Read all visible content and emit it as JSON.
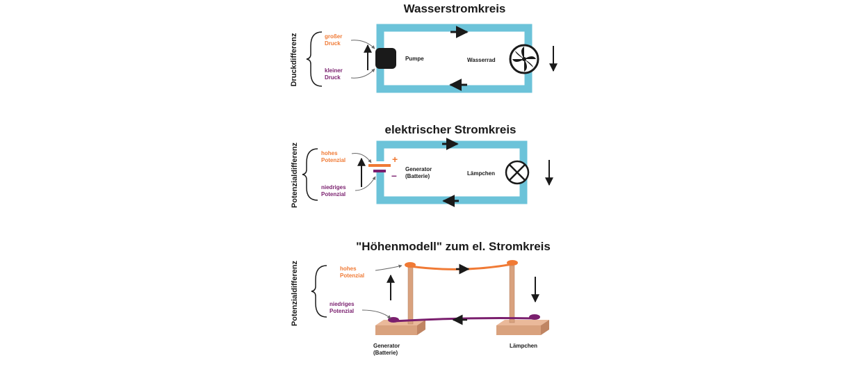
{
  "colors": {
    "pipe": "#6cc3d9",
    "high": "#f07a35",
    "low": "#7a1f6e",
    "ink": "#1a1a1a",
    "wood": "#d9a27e"
  },
  "water_circuit": {
    "title": "Wasserstromkreis",
    "side_label": "Druckdifferenz",
    "high_label": [
      "großer",
      "Druck"
    ],
    "low_label": [
      "kleiner",
      "Druck"
    ],
    "pump_label": "Pumpe",
    "wheel_label": "Wasserrad"
  },
  "electric_circuit": {
    "title": "elektrischer Stromkreis",
    "side_label": "Potenzialdifferenz",
    "high_label": [
      "hohes",
      "Potenzial"
    ],
    "low_label": [
      "niedriges",
      "Potenzial"
    ],
    "generator_label": [
      "Generator",
      "(Batterie)"
    ],
    "plus": "+",
    "minus": "–",
    "lamp_label": "Lämpchen"
  },
  "height_model": {
    "title": "\"Höhenmodell\" zum el. Stromkreis",
    "side_label": "Potenzialdifferenz",
    "high_label": [
      "hohes",
      "Potenzial"
    ],
    "low_label": [
      "niedriges",
      "Potenzial"
    ],
    "generator_label": [
      "Generator",
      "(Batterie)"
    ],
    "lamp_label": "Lämpchen"
  }
}
